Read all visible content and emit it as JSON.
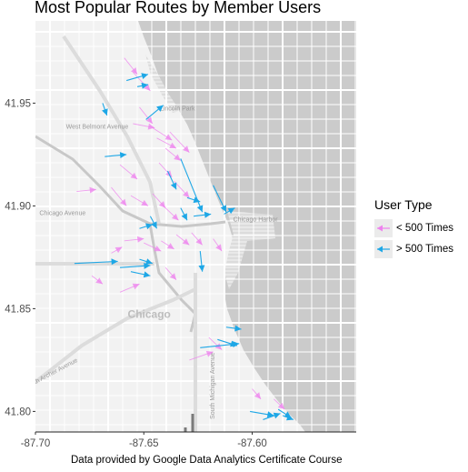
{
  "chart_data": {
    "type": "map",
    "title": "Most Popular Routes by Member Users",
    "caption": "Data provided by Google Data Analytics Certificate Course",
    "x_ticks": [
      -87.7,
      -87.65,
      -87.6
    ],
    "x_tick_labels": [
      "-87.70",
      "-87.65",
      "-87.60"
    ],
    "y_ticks": [
      41.8,
      41.85,
      41.9,
      41.95
    ],
    "y_tick_labels": [
      "41.80",
      "41.85",
      "41.90",
      "41.95"
    ],
    "xlim": [
      -87.7,
      -87.552
    ],
    "ylim": [
      41.79,
      41.99
    ],
    "legend": {
      "title": "User Type",
      "position": "right",
      "entries": [
        {
          "label": "< 500 Times",
          "color": "#ee82ee"
        },
        {
          "label": "> 500 Times",
          "color": "#1ea7e6"
        }
      ]
    },
    "map_labels": [
      {
        "text": "Chicago",
        "lon": -87.6475,
        "lat": 41.8455
      },
      {
        "text": "West Belmont Avenue",
        "lon": -87.6715,
        "lat": 41.9375
      },
      {
        "text": "Chicago Avenue",
        "lon": -87.6875,
        "lat": 41.8955
      },
      {
        "text": "Lincoln Park",
        "lon": -87.6345,
        "lat": 41.9465
      },
      {
        "text": "Chicago Harbor",
        "lon": -87.5985,
        "lat": 41.8925
      },
      {
        "text": "South Archer Avenue",
        "lon": -87.6925,
        "lat": 41.8175
      },
      {
        "text": "South Michigan Avenue",
        "lon": -87.6175,
        "lat": 41.8125
      }
    ],
    "series": [
      {
        "name": "> 500 Times",
        "routes": [
          [
            -87.658,
            41.961,
            -87.648,
            41.964
          ],
          [
            -87.653,
            41.958,
            -87.648,
            41.959
          ],
          [
            -87.649,
            41.942,
            -87.641,
            41.949
          ],
          [
            -87.669,
            41.95,
            -87.667,
            41.944
          ],
          [
            -87.668,
            41.924,
            -87.658,
            41.925
          ],
          [
            -87.639,
            41.917,
            -87.635,
            41.908
          ],
          [
            -87.633,
            41.923,
            -87.623,
            41.897
          ],
          [
            -87.63,
            41.904,
            -87.624,
            41.902
          ],
          [
            -87.627,
            41.895,
            -87.619,
            41.896
          ],
          [
            -87.633,
            41.899,
            -87.63,
            41.893
          ],
          [
            -87.618,
            41.91,
            -87.612,
            41.897
          ],
          [
            -87.613,
            41.896,
            -87.608,
            41.899
          ],
          [
            -87.647,
            41.895,
            -87.644,
            41.889
          ],
          [
            -87.652,
            41.889,
            -87.646,
            41.891
          ],
          [
            -87.682,
            41.872,
            -87.662,
            41.873
          ],
          [
            -87.661,
            41.87,
            -87.647,
            41.871
          ],
          [
            -87.656,
            41.868,
            -87.647,
            41.866
          ],
          [
            -87.652,
            41.874,
            -87.646,
            41.872
          ],
          [
            -87.624,
            41.878,
            -87.623,
            41.868
          ],
          [
            -87.612,
            41.841,
            -87.605,
            41.84
          ],
          [
            -87.624,
            41.831,
            -87.606,
            41.833
          ],
          [
            -87.616,
            41.835,
            -87.607,
            41.832
          ],
          [
            -87.601,
            41.8,
            -87.59,
            41.798
          ],
          [
            -87.595,
            41.796,
            -87.587,
            41.799
          ],
          [
            -87.588,
            41.801,
            -87.582,
            41.797
          ],
          [
            -87.586,
            41.798,
            -87.581,
            41.796
          ]
        ]
      },
      {
        "name": "< 500 Times",
        "routes": [
          [
            -87.659,
            41.972,
            -87.653,
            41.964
          ],
          [
            -87.655,
            41.965,
            -87.647,
            41.956
          ],
          [
            -87.652,
            41.948,
            -87.646,
            41.94
          ],
          [
            -87.646,
            41.938,
            -87.637,
            41.932
          ],
          [
            -87.644,
            41.933,
            -87.635,
            41.928
          ],
          [
            -87.655,
            41.94,
            -87.645,
            41.938
          ],
          [
            -87.64,
            41.928,
            -87.633,
            41.922
          ],
          [
            -87.638,
            41.936,
            -87.629,
            41.926
          ],
          [
            -87.661,
            41.92,
            -87.653,
            41.913
          ],
          [
            -87.643,
            41.921,
            -87.637,
            41.914
          ],
          [
            -87.665,
            41.909,
            -87.658,
            41.9
          ],
          [
            -87.681,
            41.907,
            -87.672,
            41.908
          ],
          [
            -87.656,
            41.905,
            -87.648,
            41.9
          ],
          [
            -87.646,
            41.906,
            -87.64,
            41.899
          ],
          [
            -87.641,
            41.9,
            -87.634,
            41.893
          ],
          [
            -87.636,
            41.912,
            -87.629,
            41.904
          ],
          [
            -87.635,
            41.886,
            -87.629,
            41.881
          ],
          [
            -87.642,
            41.883,
            -87.636,
            41.879
          ],
          [
            -87.65,
            41.882,
            -87.642,
            41.878
          ],
          [
            -87.659,
            41.883,
            -87.65,
            41.884
          ],
          [
            -87.665,
            41.877,
            -87.66,
            41.88
          ],
          [
            -87.674,
            41.866,
            -87.669,
            41.862
          ],
          [
            -87.661,
            41.858,
            -87.652,
            41.862
          ],
          [
            -87.64,
            41.87,
            -87.635,
            41.864
          ],
          [
            -87.628,
            41.887,
            -87.623,
            41.881
          ],
          [
            -87.618,
            41.884,
            -87.614,
            41.878
          ],
          [
            -87.629,
            41.825,
            -87.618,
            41.829
          ],
          [
            -87.62,
            41.836,
            -87.614,
            41.83
          ],
          [
            -87.6,
            41.811,
            -87.596,
            41.806
          ],
          [
            -87.59,
            41.806,
            -87.585,
            41.801
          ]
        ]
      }
    ]
  }
}
